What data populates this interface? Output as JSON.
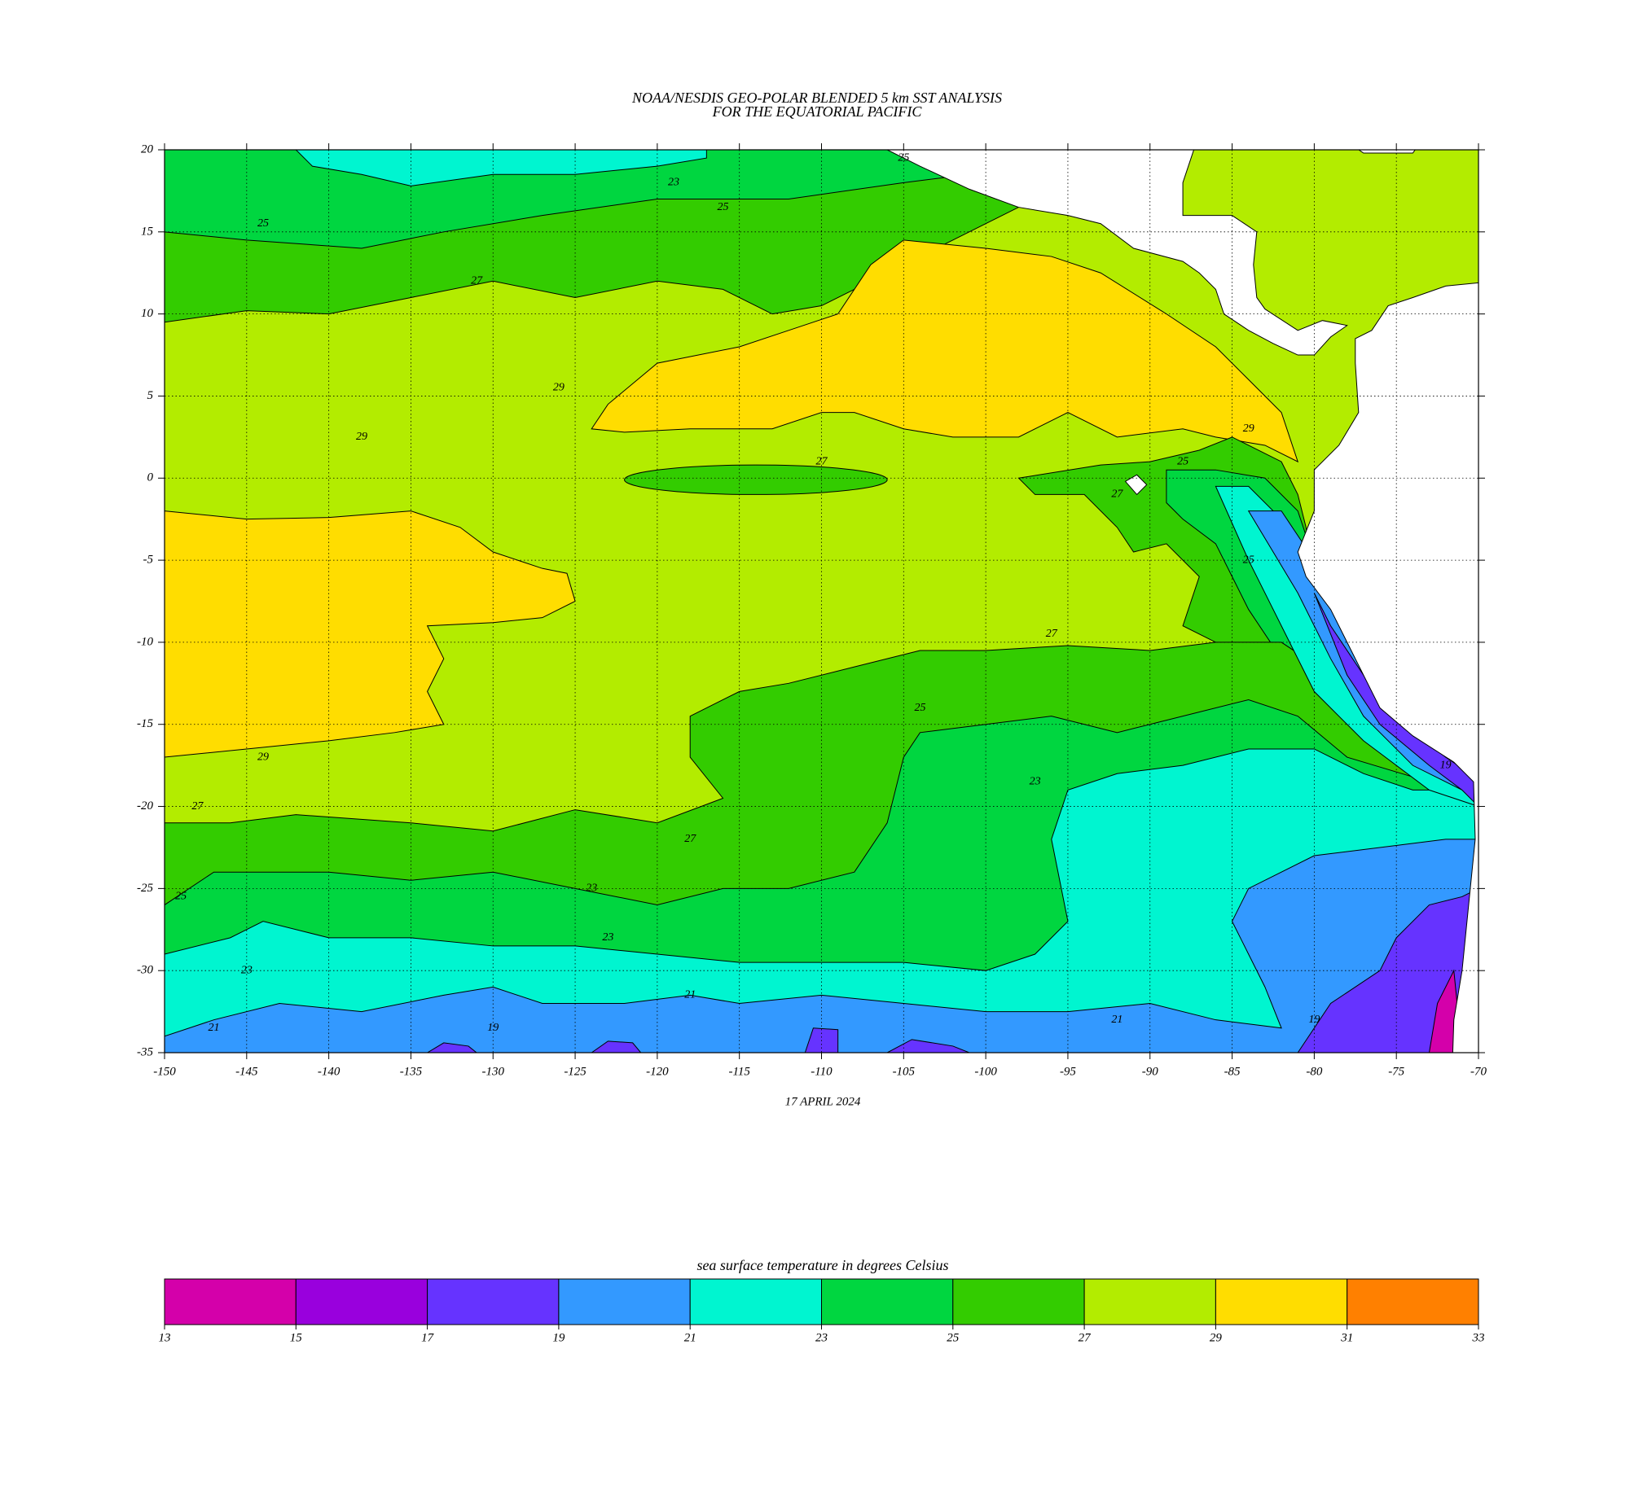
{
  "chart_data": {
    "type": "map",
    "title": "NOAA/NESDIS GEO-POLAR BLENDED 5 km SST ANALYSIS",
    "subtitle": "FOR THE EQUATORIAL PACIFIC",
    "date": "17 APRIL 2024",
    "xlim": [
      -150,
      -70
    ],
    "ylim": [
      -35,
      20
    ],
    "xticks": [
      -150,
      -145,
      -140,
      -135,
      -130,
      -125,
      -120,
      -115,
      -110,
      -105,
      -100,
      -95,
      -90,
      -85,
      -80,
      -75,
      -70
    ],
    "yticks": [
      20,
      15,
      10,
      5,
      0,
      -5,
      -10,
      -15,
      -20,
      -25,
      -30,
      -35
    ],
    "grid": true,
    "contour_labels": [
      {
        "label": 25,
        "lon": -144,
        "lat": 15.5
      },
      {
        "label": 27,
        "lon": -131,
        "lat": 12
      },
      {
        "label": 23,
        "lon": -119,
        "lat": 18
      },
      {
        "label": 25,
        "lon": -116,
        "lat": 16.5
      },
      {
        "label": 25,
        "lon": -105,
        "lat": 19.5
      },
      {
        "label": 29,
        "lon": -126,
        "lat": 5.5
      },
      {
        "label": 29,
        "lon": -138,
        "lat": 2.5
      },
      {
        "label": 27,
        "lon": -110,
        "lat": 1
      },
      {
        "label": 27,
        "lon": -92,
        "lat": -1
      },
      {
        "label": 25,
        "lon": -88,
        "lat": 1
      },
      {
        "label": 29,
        "lon": -84,
        "lat": 3
      },
      {
        "label": 25,
        "lon": -84,
        "lat": -5
      },
      {
        "label": 27,
        "lon": -96,
        "lat": -9.5
      },
      {
        "label": 25,
        "lon": -104,
        "lat": -14
      },
      {
        "label": 23,
        "lon": -97,
        "lat": -18.5
      },
      {
        "label": 27,
        "lon": -118,
        "lat": -22
      },
      {
        "label": 29,
        "lon": -144,
        "lat": -17
      },
      {
        "label": 27,
        "lon": -148,
        "lat": -20
      },
      {
        "label": 25,
        "lon": -149,
        "lat": -25.5
      },
      {
        "label": 23,
        "lon": -145,
        "lat": -30
      },
      {
        "label": 23,
        "lon": -124,
        "lat": -25
      },
      {
        "label": 23,
        "lon": -123,
        "lat": -28
      },
      {
        "label": 21,
        "lon": -147,
        "lat": -33.5
      },
      {
        "label": 19,
        "lon": -130,
        "lat": -33.5
      },
      {
        "label": 21,
        "lon": -118,
        "lat": -31.5
      },
      {
        "label": 21,
        "lon": -92,
        "lat": -33
      },
      {
        "label": 19,
        "lon": -80,
        "lat": -33
      },
      {
        "label": 19,
        "lon": -72,
        "lat": -17.5
      }
    ],
    "colorbar": {
      "title": "sea surface temperature in degrees Celsius",
      "ticks": [
        13,
        15,
        17,
        19,
        21,
        23,
        25,
        27,
        29,
        31,
        33
      ],
      "colors": [
        "#d400aa",
        "#9900dd",
        "#6633ff",
        "#3399ff",
        "#00f5d0",
        "#00d640",
        "#33cc00",
        "#b3ec00",
        "#ffdd00",
        "#ff8000"
      ]
    }
  }
}
